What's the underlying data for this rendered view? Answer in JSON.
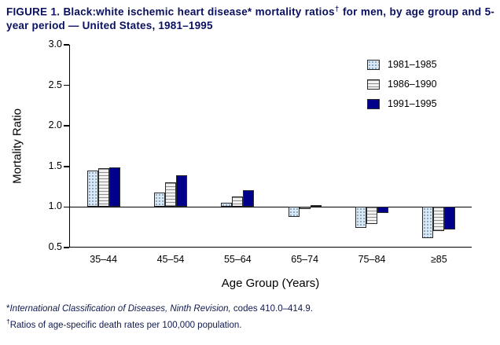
{
  "title": {
    "part1": "FIGURE 1. Black:white ischemic heart disease* mortality ratios",
    "dagger": "†",
    "part2": " for men, by age group and 5-year period — United States, 1981–1995"
  },
  "chart_data": {
    "type": "bar",
    "categories": [
      "35–44",
      "45–54",
      "55–64",
      "65–74",
      "75–84",
      "≥85"
    ],
    "series": [
      {
        "name": "1981–1985",
        "values": [
          1.45,
          1.18,
          1.05,
          0.88,
          0.74,
          0.62
        ]
      },
      {
        "name": "1986–1990",
        "values": [
          1.48,
          1.3,
          1.13,
          0.97,
          0.79,
          0.7
        ]
      },
      {
        "name": "1991–1995",
        "values": [
          1.49,
          1.39,
          1.21,
          1.02,
          0.93,
          0.72
        ]
      }
    ],
    "baseline": 1.0,
    "ylabel": "Mortality Ratio",
    "xlabel": "Age Group (Years)",
    "ylim": [
      0.5,
      3.0
    ],
    "yticks": [
      0.5,
      1.0,
      1.5,
      2.0,
      2.5,
      3.0
    ],
    "grid": false,
    "legend_position": "top-right-inside",
    "colors": {
      "series_1981_1985": "#dce9f5",
      "series_1986_1990": "#f1f1f1",
      "series_1991_1995": "#00008B",
      "axis": "#000000",
      "title_text": "#0a1060"
    }
  },
  "footnotes": {
    "note1": {
      "marker": "*",
      "italic": "International Classification of Diseases, Ninth Revision,",
      "rest": " codes 410.0–414.9."
    },
    "note2": {
      "marker": "†",
      "text": "Ratios of age-specific death rates per 100,000 population."
    }
  }
}
